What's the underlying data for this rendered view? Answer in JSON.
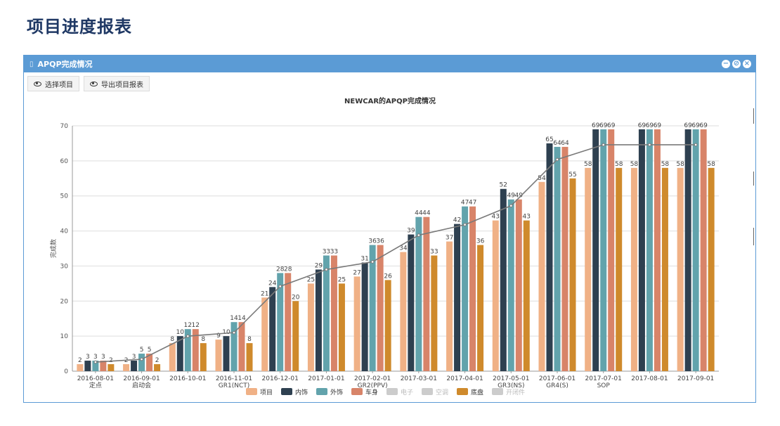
{
  "page": {
    "title": "项目进度报表"
  },
  "panel": {
    "title": "APQP完成情况",
    "controls": {
      "minimize": "−",
      "restore": "⊘",
      "close": "×"
    }
  },
  "toolbar": {
    "select_project": "选择项目",
    "export_report": "导出项目报表"
  },
  "icons": {
    "eye": "eye-icon",
    "panel_doc": "document-icon"
  },
  "colors": {
    "header": "#5b9bd5",
    "title": "#1f3864",
    "line": "#7a7a7a"
  },
  "chart_data": {
    "type": "bar",
    "title": "NEWCAR的APQP完成情况",
    "ylabel": "完成数",
    "xlabel": "",
    "ylim": [
      0,
      70
    ],
    "yticks": [
      0,
      10,
      20,
      30,
      40,
      50,
      60,
      70
    ],
    "grid": true,
    "legend_position": "bottom",
    "categories": [
      [
        "2016-08-01",
        "定点"
      ],
      [
        "2016-09-01",
        "启动会"
      ],
      [
        "2016-10-01",
        ""
      ],
      [
        "2016-11-01",
        "GR1(NCT)"
      ],
      [
        "2016-12-01",
        ""
      ],
      [
        "2017-01-01",
        ""
      ],
      [
        "2017-02-01",
        "GR2(PPV)"
      ],
      [
        "2017-03-01",
        ""
      ],
      [
        "2017-04-01",
        ""
      ],
      [
        "2017-05-01",
        "GR3(NS)"
      ],
      [
        "2017-06-01",
        "GR4(S)"
      ],
      [
        "2017-07-01",
        "SOP"
      ],
      [
        "2017-08-01",
        ""
      ],
      [
        "2017-09-01",
        ""
      ]
    ],
    "series": [
      {
        "name": "项目",
        "color": "#f0b186",
        "values": [
          2,
          2,
          8,
          9,
          21,
          25,
          27,
          34,
          37,
          43,
          54,
          58,
          58,
          58
        ]
      },
      {
        "name": "内饰",
        "color": "#2e4050",
        "values": [
          3,
          3,
          10,
          10,
          24,
          29,
          31,
          39,
          42,
          52,
          65,
          69,
          69,
          69
        ]
      },
      {
        "name": "外饰",
        "color": "#62a3ac",
        "values": [
          3,
          5,
          12,
          14,
          28,
          33,
          36,
          44,
          47,
          49,
          64,
          69,
          69,
          69
        ]
      },
      {
        "name": "车身",
        "color": "#d88469",
        "values": [
          3,
          5,
          12,
          14,
          28,
          33,
          36,
          44,
          47,
          49,
          64,
          69,
          69,
          69
        ]
      },
      {
        "name": "底盘",
        "color": "#cf8a2c",
        "values": [
          2,
          2,
          8,
          8,
          20,
          25,
          26,
          33,
          36,
          43,
          55,
          58,
          58,
          58
        ]
      }
    ],
    "line": {
      "color": "#7a7a7a",
      "values": [
        2.6,
        3.4,
        10,
        11,
        24.2,
        29,
        31.2,
        38.8,
        41.8,
        47.2,
        60.4,
        64.6,
        64.6,
        64.6
      ]
    },
    "legend": [
      {
        "name": "项目",
        "color": "#f0b186",
        "active": true
      },
      {
        "name": "内饰",
        "color": "#2e4050",
        "active": true
      },
      {
        "name": "外饰",
        "color": "#62a3ac",
        "active": true
      },
      {
        "name": "车身",
        "color": "#d88469",
        "active": true
      },
      {
        "name": "电子",
        "color": "#cccccc",
        "active": false
      },
      {
        "name": "空调",
        "color": "#cccccc",
        "active": false
      },
      {
        "name": "底盘",
        "color": "#cf8a2c",
        "active": true
      },
      {
        "name": "开闭件",
        "color": "#cccccc",
        "active": false
      }
    ]
  }
}
